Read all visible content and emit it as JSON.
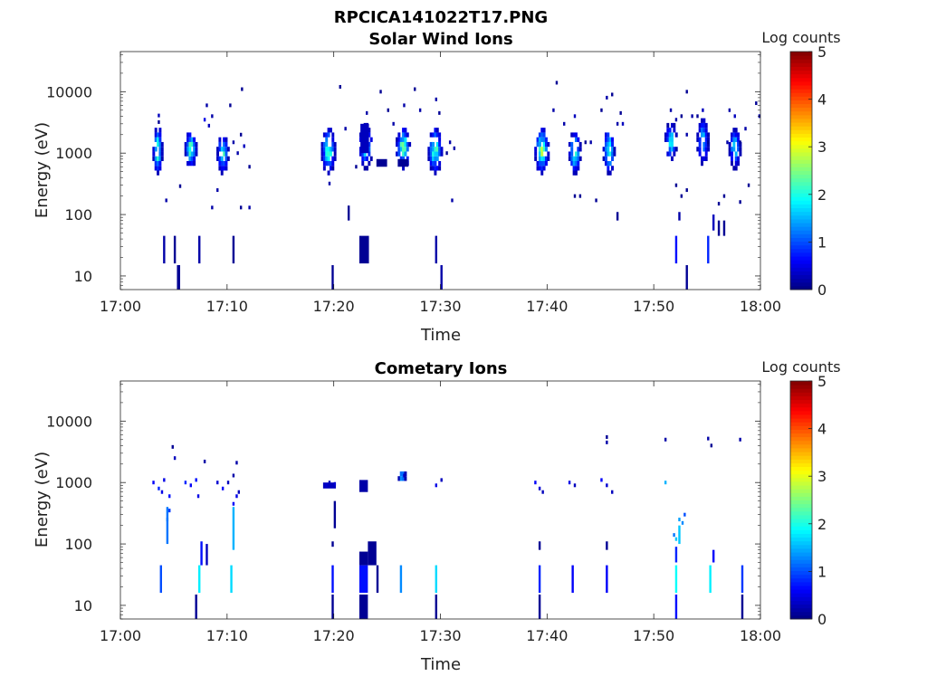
{
  "figure": {
    "title": "RPCICA141022T17.PNG"
  },
  "chart_data": [
    {
      "type": "heatmap",
      "title": "Solar Wind Ions",
      "xlabel": "Time",
      "ylabel": "Energy (eV)",
      "x_ticks": [
        "17:00",
        "17:10",
        "17:20",
        "17:30",
        "17:40",
        "17:50",
        "18:00"
      ],
      "xlim_minutes": [
        0,
        60
      ],
      "y_ticks": [
        "10",
        "100",
        "1000",
        "10000"
      ],
      "y_scale": "log",
      "ylim": [
        6,
        45000
      ],
      "colorbar": {
        "label": "Log counts",
        "range": [
          0,
          5
        ],
        "ticks": [
          "0",
          "1",
          "2",
          "3",
          "4",
          "5"
        ],
        "colormap": "jet"
      },
      "grid": false,
      "blobs": [
        {
          "t": [
            3.0,
            3.8
          ],
          "e": [
            500,
            2500
          ],
          "peak": 2.4
        },
        {
          "t": [
            6.0,
            7.0
          ],
          "e": [
            600,
            2200
          ],
          "peak": 2.3
        },
        {
          "t": [
            9.0,
            10.0
          ],
          "e": [
            500,
            2000
          ],
          "peak": 2.0
        },
        {
          "t": [
            18.8,
            20.0
          ],
          "e": [
            500,
            2500
          ],
          "peak": 2.2
        },
        {
          "t": [
            22.3,
            23.5
          ],
          "e": [
            600,
            2800
          ],
          "peak": 1.8
        },
        {
          "t": [
            25.8,
            27.0
          ],
          "e": [
            600,
            2500
          ],
          "peak": 2.4
        },
        {
          "t": [
            28.8,
            30.0
          ],
          "e": [
            500,
            2500
          ],
          "peak": 2.3
        },
        {
          "t": [
            38.8,
            40.0
          ],
          "e": [
            500,
            2500
          ],
          "peak": 2.4
        },
        {
          "t": [
            42.0,
            43.0
          ],
          "e": [
            500,
            2200
          ],
          "peak": 2.3
        },
        {
          "t": [
            45.2,
            46.2
          ],
          "e": [
            500,
            2500
          ],
          "peak": 2.2
        },
        {
          "t": [
            51.0,
            52.0
          ],
          "e": [
            800,
            3000
          ],
          "peak": 1.9
        },
        {
          "t": [
            54.0,
            55.0
          ],
          "e": [
            700,
            3500
          ],
          "peak": 1.8
        },
        {
          "t": [
            57.0,
            58.0
          ],
          "e": [
            600,
            2500
          ],
          "peak": 1.8
        }
      ],
      "bands": [
        {
          "t": [
            22.5,
            23.3
          ],
          "e": [
            1000,
            3000
          ],
          "v": 0.3
        },
        {
          "t": [
            22.4,
            23.3
          ],
          "e": [
            16,
            45
          ],
          "v": 0.1
        },
        {
          "t": [
            5.3,
            5.6
          ],
          "e": [
            6,
            15
          ],
          "v": 0.1
        },
        {
          "t": [
            19.8,
            20.0
          ],
          "e": [
            6,
            15
          ],
          "v": 0.1
        },
        {
          "t": [
            24.0,
            25.0
          ],
          "e": [
            600,
            800
          ],
          "v": 0.1
        },
        {
          "t": [
            26.0,
            27.0
          ],
          "e": [
            600,
            800
          ],
          "v": 0.1
        }
      ],
      "lines": [
        {
          "t": 4.0,
          "e": [
            16,
            45
          ],
          "v": 0.2
        },
        {
          "t": 5.0,
          "e": [
            16,
            45
          ],
          "v": 0.1
        },
        {
          "t": 7.3,
          "e": [
            16,
            45
          ],
          "v": 0.2
        },
        {
          "t": 10.5,
          "e": [
            16,
            45
          ],
          "v": 0.1
        },
        {
          "t": 29.5,
          "e": [
            16,
            45
          ],
          "v": 0.2
        },
        {
          "t": 30.0,
          "e": [
            6,
            15
          ],
          "v": 0.2
        },
        {
          "t": 52.0,
          "e": [
            16,
            45
          ],
          "v": 0.7
        },
        {
          "t": 55.0,
          "e": [
            16,
            45
          ],
          "v": 0.8
        },
        {
          "t": 53.0,
          "e": [
            6,
            15
          ],
          "v": 0.1
        },
        {
          "t": 21.3,
          "e": [
            80,
            140
          ],
          "v": 0.1
        },
        {
          "t": 46.5,
          "e": [
            80,
            110
          ],
          "v": 0.1
        },
        {
          "t": 52.3,
          "e": [
            80,
            110
          ],
          "v": 0.2
        },
        {
          "t": 55.5,
          "e": [
            55,
            100
          ],
          "v": 0.3
        },
        {
          "t": 56.0,
          "e": [
            45,
            80
          ],
          "v": 0.1
        },
        {
          "t": 56.5,
          "e": [
            45,
            80
          ],
          "v": 0.1
        }
      ],
      "dots": [
        [
          3.5,
          3200,
          0.1
        ],
        [
          3.5,
          4100,
          0.3
        ],
        [
          4.2,
          170,
          0.2
        ],
        [
          5.5,
          290,
          0.1
        ],
        [
          7.8,
          3500,
          0.5
        ],
        [
          8.0,
          6000,
          0.2
        ],
        [
          8.2,
          2800,
          0.3
        ],
        [
          8.5,
          4000,
          0.2
        ],
        [
          9.0,
          250,
          0.2
        ],
        [
          8.5,
          130,
          0.2
        ],
        [
          10.2,
          6000,
          0.1
        ],
        [
          10.5,
          1500,
          0.2
        ],
        [
          10.9,
          1000,
          0.2
        ],
        [
          11.2,
          2000,
          0.1
        ],
        [
          11.5,
          1300,
          0.3
        ],
        [
          11.2,
          130,
          0.1
        ],
        [
          12.0,
          130,
          0.2
        ],
        [
          11.3,
          11000,
          0.1
        ],
        [
          12.0,
          600,
          0.1
        ],
        [
          20.5,
          12000,
          0.1
        ],
        [
          21.0,
          2500,
          0.2
        ],
        [
          19.5,
          320,
          0.2
        ],
        [
          22.0,
          600,
          0.1
        ],
        [
          23.0,
          4500,
          0.2
        ],
        [
          24.3,
          10000,
          0.1
        ],
        [
          25.0,
          5000,
          0.1
        ],
        [
          25.5,
          3000,
          0.2
        ],
        [
          26.5,
          6000,
          0.2
        ],
        [
          27.5,
          11000,
          0.1
        ],
        [
          28.0,
          5000,
          0.2
        ],
        [
          29.5,
          7500,
          0.2
        ],
        [
          29.8,
          4500,
          0.1
        ],
        [
          30.5,
          1000,
          0.1
        ],
        [
          30.8,
          1500,
          0.2
        ],
        [
          31.2,
          1200,
          0.2
        ],
        [
          31.0,
          170,
          0.2
        ],
        [
          40.5,
          5000,
          0.2
        ],
        [
          40.8,
          14000,
          0.1
        ],
        [
          41.5,
          3000,
          0.2
        ],
        [
          42.5,
          4000,
          0.3
        ],
        [
          43.5,
          1500,
          0.1
        ],
        [
          42.5,
          200,
          0.1
        ],
        [
          43.0,
          200,
          0.1
        ],
        [
          44.0,
          1500,
          0.2
        ],
        [
          44.5,
          170,
          0.1
        ],
        [
          45.0,
          5000,
          0.1
        ],
        [
          45.5,
          8000,
          0.2
        ],
        [
          46.0,
          9000,
          0.1
        ],
        [
          46.5,
          3000,
          0.2
        ],
        [
          46.8,
          4500,
          0.1
        ],
        [
          47.0,
          3000,
          0.3
        ],
        [
          51.5,
          5000,
          0.2
        ],
        [
          52.0,
          3500,
          0.2
        ],
        [
          52.5,
          4000,
          0.1
        ],
        [
          53.0,
          10000,
          0.1
        ],
        [
          53.0,
          2000,
          0.2
        ],
        [
          53.5,
          4000,
          0.2
        ],
        [
          54.0,
          4000,
          0.1
        ],
        [
          54.5,
          5000,
          0.3
        ],
        [
          55.0,
          1500,
          0.1
        ],
        [
          52.0,
          300,
          0.1
        ],
        [
          52.5,
          200,
          0.1
        ],
        [
          53.0,
          250,
          0.1
        ],
        [
          56.0,
          150,
          0.1
        ],
        [
          56.5,
          200,
          0.1
        ],
        [
          56.8,
          1500,
          0.2
        ],
        [
          57.0,
          5000,
          0.2
        ],
        [
          57.5,
          4000,
          0.3
        ],
        [
          58.0,
          1500,
          0.1
        ],
        [
          58.5,
          2500,
          0.2
        ],
        [
          58.8,
          300,
          0.1
        ],
        [
          59.5,
          6500,
          0.1
        ],
        [
          59.8,
          4000,
          0.2
        ],
        [
          58.0,
          160,
          0.1
        ]
      ]
    },
    {
      "type": "heatmap",
      "title": "Cometary Ions",
      "xlabel": "Time",
      "ylabel": "Energy (eV)",
      "x_ticks": [
        "17:00",
        "17:10",
        "17:20",
        "17:30",
        "17:40",
        "17:50",
        "18:00"
      ],
      "xlim_minutes": [
        0,
        60
      ],
      "y_ticks": [
        "10",
        "100",
        "1000",
        "10000"
      ],
      "y_scale": "log",
      "ylim": [
        6,
        45000
      ],
      "colorbar": {
        "label": "Log counts",
        "range": [
          0,
          5
        ],
        "ticks": [
          "0",
          "1",
          "2",
          "3",
          "4",
          "5"
        ],
        "colormap": "jet"
      },
      "grid": false,
      "blobs": [
        {
          "t": [
            26.0,
            26.6
          ],
          "e": [
            1000,
            1600
          ],
          "peak": 1.8
        }
      ],
      "bands": [
        {
          "t": [
            22.4,
            23.2
          ],
          "e": [
            700,
            1100
          ],
          "v": 0.2
        },
        {
          "t": [
            22.4,
            23.2
          ],
          "e": [
            16,
            45
          ],
          "v": 0.7
        },
        {
          "t": [
            22.4,
            23.2
          ],
          "e": [
            6,
            15
          ],
          "v": 0.1
        },
        {
          "t": [
            22.4,
            23.2
          ],
          "e": [
            45,
            75
          ],
          "v": 0.1
        },
        {
          "t": [
            23.2,
            24.0
          ],
          "e": [
            45,
            110
          ],
          "v": 0.1
        },
        {
          "t": [
            19.0,
            20.2
          ],
          "e": [
            800,
            1000
          ],
          "v": 0.3
        }
      ],
      "lines": [
        {
          "t": 3.7,
          "e": [
            16,
            45
          ],
          "v": 1.0
        },
        {
          "t": 7.3,
          "e": [
            16,
            45
          ],
          "v": 1.8
        },
        {
          "t": 10.3,
          "e": [
            16,
            45
          ],
          "v": 1.7
        },
        {
          "t": 7.0,
          "e": [
            6,
            15
          ],
          "v": 0.1
        },
        {
          "t": 19.8,
          "e": [
            16,
            45
          ],
          "v": 0.7
        },
        {
          "t": 19.8,
          "e": [
            6,
            15
          ],
          "v": 0.1
        },
        {
          "t": 26.2,
          "e": [
            16,
            45
          ],
          "v": 1.3
        },
        {
          "t": 29.5,
          "e": [
            16,
            45
          ],
          "v": 1.7
        },
        {
          "t": 29.5,
          "e": [
            6,
            15
          ],
          "v": 0.1
        },
        {
          "t": 39.2,
          "e": [
            16,
            45
          ],
          "v": 0.8
        },
        {
          "t": 39.2,
          "e": [
            6,
            15
          ],
          "v": 0.1
        },
        {
          "t": 42.3,
          "e": [
            16,
            45
          ],
          "v": 0.6
        },
        {
          "t": 45.5,
          "e": [
            16,
            45
          ],
          "v": 0.6
        },
        {
          "t": 52.0,
          "e": [
            16,
            45
          ],
          "v": 1.9
        },
        {
          "t": 52.0,
          "e": [
            6,
            15
          ],
          "v": 0.7
        },
        {
          "t": 55.2,
          "e": [
            16,
            45
          ],
          "v": 1.8
        },
        {
          "t": 58.2,
          "e": [
            16,
            45
          ],
          "v": 0.9
        },
        {
          "t": 58.2,
          "e": [
            6,
            15
          ],
          "v": 0.1
        },
        {
          "t": 20.0,
          "e": [
            180,
            500
          ],
          "v": 0.1
        },
        {
          "t": 19.8,
          "e": [
            90,
            110
          ],
          "v": 0.1
        },
        {
          "t": 24.0,
          "e": [
            16,
            45
          ],
          "v": 0.1
        },
        {
          "t": 7.5,
          "e": [
            45,
            110
          ],
          "v": 0.7
        },
        {
          "t": 8.0,
          "e": [
            45,
            100
          ],
          "v": 0.3
        },
        {
          "t": 10.5,
          "e": [
            80,
            400
          ],
          "v": 1.5
        },
        {
          "t": 4.3,
          "e": [
            100,
            400
          ],
          "v": 1.2
        },
        {
          "t": 52.3,
          "e": [
            100,
            200
          ],
          "v": 1.6
        },
        {
          "t": 52.0,
          "e": [
            50,
            90
          ],
          "v": 0.8
        },
        {
          "t": 55.5,
          "e": [
            50,
            80
          ],
          "v": 0.6
        },
        {
          "t": 39.2,
          "e": [
            80,
            110
          ],
          "v": 0.1
        },
        {
          "t": 45.5,
          "e": [
            80,
            110
          ],
          "v": 0.1
        }
      ],
      "dots": [
        [
          3.0,
          1000,
          0.6
        ],
        [
          3.5,
          800,
          0.8
        ],
        [
          4.0,
          1100,
          0.5
        ],
        [
          4.5,
          600,
          0.7
        ],
        [
          4.5,
          350,
          0.9
        ],
        [
          4.3,
          250,
          1.2
        ],
        [
          4.8,
          3800,
          0.1
        ],
        [
          5.0,
          2500,
          0.3
        ],
        [
          6.0,
          1000,
          0.8
        ],
        [
          6.5,
          900,
          0.6
        ],
        [
          7.0,
          1100,
          0.7
        ],
        [
          7.2,
          600,
          0.5
        ],
        [
          7.8,
          2200,
          0.2
        ],
        [
          9.0,
          1000,
          0.4
        ],
        [
          9.5,
          800,
          0.6
        ],
        [
          10.0,
          1000,
          0.3
        ],
        [
          10.5,
          1300,
          0.2
        ],
        [
          10.8,
          600,
          0.5
        ],
        [
          10.5,
          450,
          0.6
        ],
        [
          10.8,
          2100,
          0.2
        ],
        [
          11.0,
          700,
          0.3
        ],
        [
          19.2,
          900,
          0.4
        ],
        [
          19.5,
          1000,
          0.3
        ],
        [
          20.0,
          950,
          0.4
        ],
        [
          26.5,
          1300,
          0.3
        ],
        [
          29.5,
          900,
          0.5
        ],
        [
          30.0,
          1100,
          0.3
        ],
        [
          38.8,
          1000,
          0.6
        ],
        [
          39.2,
          800,
          0.4
        ],
        [
          39.5,
          700,
          0.3
        ],
        [
          42.0,
          1000,
          0.5
        ],
        [
          42.5,
          900,
          0.3
        ],
        [
          45.0,
          1100,
          0.6
        ],
        [
          45.5,
          900,
          0.4
        ],
        [
          46.0,
          700,
          0.3
        ],
        [
          51.0,
          1000,
          1.5
        ],
        [
          51.0,
          5000,
          0.2
        ],
        [
          55.0,
          5200,
          0.2
        ],
        [
          55.3,
          4000,
          0.1
        ],
        [
          45.5,
          4500,
          0.2
        ],
        [
          45.5,
          5500,
          0.1
        ],
        [
          58.0,
          5000,
          0.2
        ],
        [
          52.3,
          250,
          1.4
        ],
        [
          52.6,
          220,
          1.3
        ],
        [
          52.0,
          120,
          1.6
        ],
        [
          51.8,
          140,
          1.2
        ],
        [
          52.8,
          300,
          1.0
        ],
        [
          3.8,
          700,
          0.5
        ]
      ]
    }
  ]
}
